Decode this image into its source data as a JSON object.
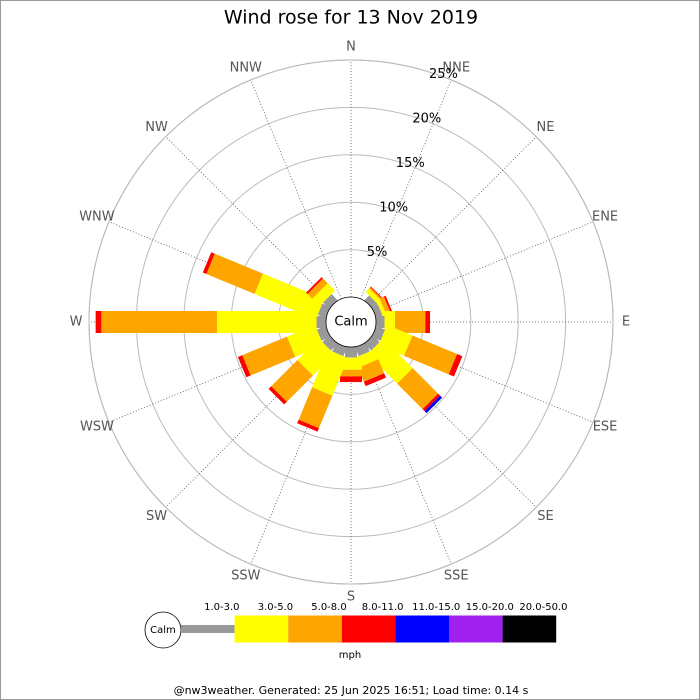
{
  "chart_data": {
    "type": "windrose",
    "title": "Wind rose for 13 Nov 2019",
    "categories": [
      "N",
      "NNE",
      "NE",
      "ENE",
      "E",
      "ESE",
      "SE",
      "SSE",
      "S",
      "SSW",
      "SW",
      "WSW",
      "W",
      "WNW",
      "NW",
      "NNW"
    ],
    "calm_label": "Calm",
    "units": "mph",
    "rlim": [
      0,
      25
    ],
    "rticks": [
      {
        "value": 5,
        "label": "5%"
      },
      {
        "value": 10,
        "label": "10%"
      },
      {
        "value": 15,
        "label": "15%"
      },
      {
        "value": 20,
        "label": "20%"
      },
      {
        "value": 25,
        "label": "25%"
      }
    ],
    "series": [
      {
        "name": "1.0-3.0",
        "color": "#999999",
        "values": [
          0,
          0,
          0.7,
          0.7,
          0.9,
          1.0,
          1.0,
          1.0,
          1.1,
          1.0,
          1.0,
          1.0,
          1.0,
          0.9,
          0.9,
          0
        ]
      },
      {
        "name": "3.0-5.0",
        "color": "#ffff00",
        "values": [
          0,
          0,
          0.5,
          0.4,
          1.1,
          2.9,
          4.4,
          1.1,
          1.3,
          4.3,
          3.2,
          3.2,
          10.5,
          7.0,
          1.1,
          0
        ]
      },
      {
        "name": "5.0-8.0",
        "color": "#ffa500",
        "values": [
          0,
          0,
          0.2,
          0.5,
          3.2,
          5.1,
          3.8,
          1.6,
          0.7,
          3.7,
          3.9,
          5.1,
          12.2,
          5.5,
          0.7,
          0
        ]
      },
      {
        "name": "8.0-11.0",
        "color": "#ff0000",
        "values": [
          0,
          0,
          0.1,
          0.2,
          0.5,
          0.6,
          0.3,
          0.5,
          0.6,
          0.4,
          0.4,
          0.5,
          0.6,
          0.4,
          0.2,
          0
        ]
      },
      {
        "name": "11.0-15.0",
        "color": "#0000ff",
        "values": [
          0,
          0,
          0,
          0,
          0,
          0,
          0.3,
          0,
          0,
          0,
          0,
          0,
          0,
          0,
          0,
          0
        ]
      },
      {
        "name": "15.0-20.0",
        "color": "#a020f0",
        "values": [
          0,
          0,
          0,
          0,
          0,
          0,
          0,
          0,
          0,
          0,
          0,
          0,
          0,
          0,
          0,
          0
        ]
      },
      {
        "name": "20.0-50.0",
        "color": "#000000",
        "values": [
          0,
          0,
          0,
          0,
          0,
          0,
          0,
          0,
          0,
          0,
          0,
          0,
          0,
          0,
          0,
          0
        ]
      }
    ],
    "footer": "@nw3weather. Generated: 25 Jun 2025 16:51; Load time: 0.14 s"
  }
}
